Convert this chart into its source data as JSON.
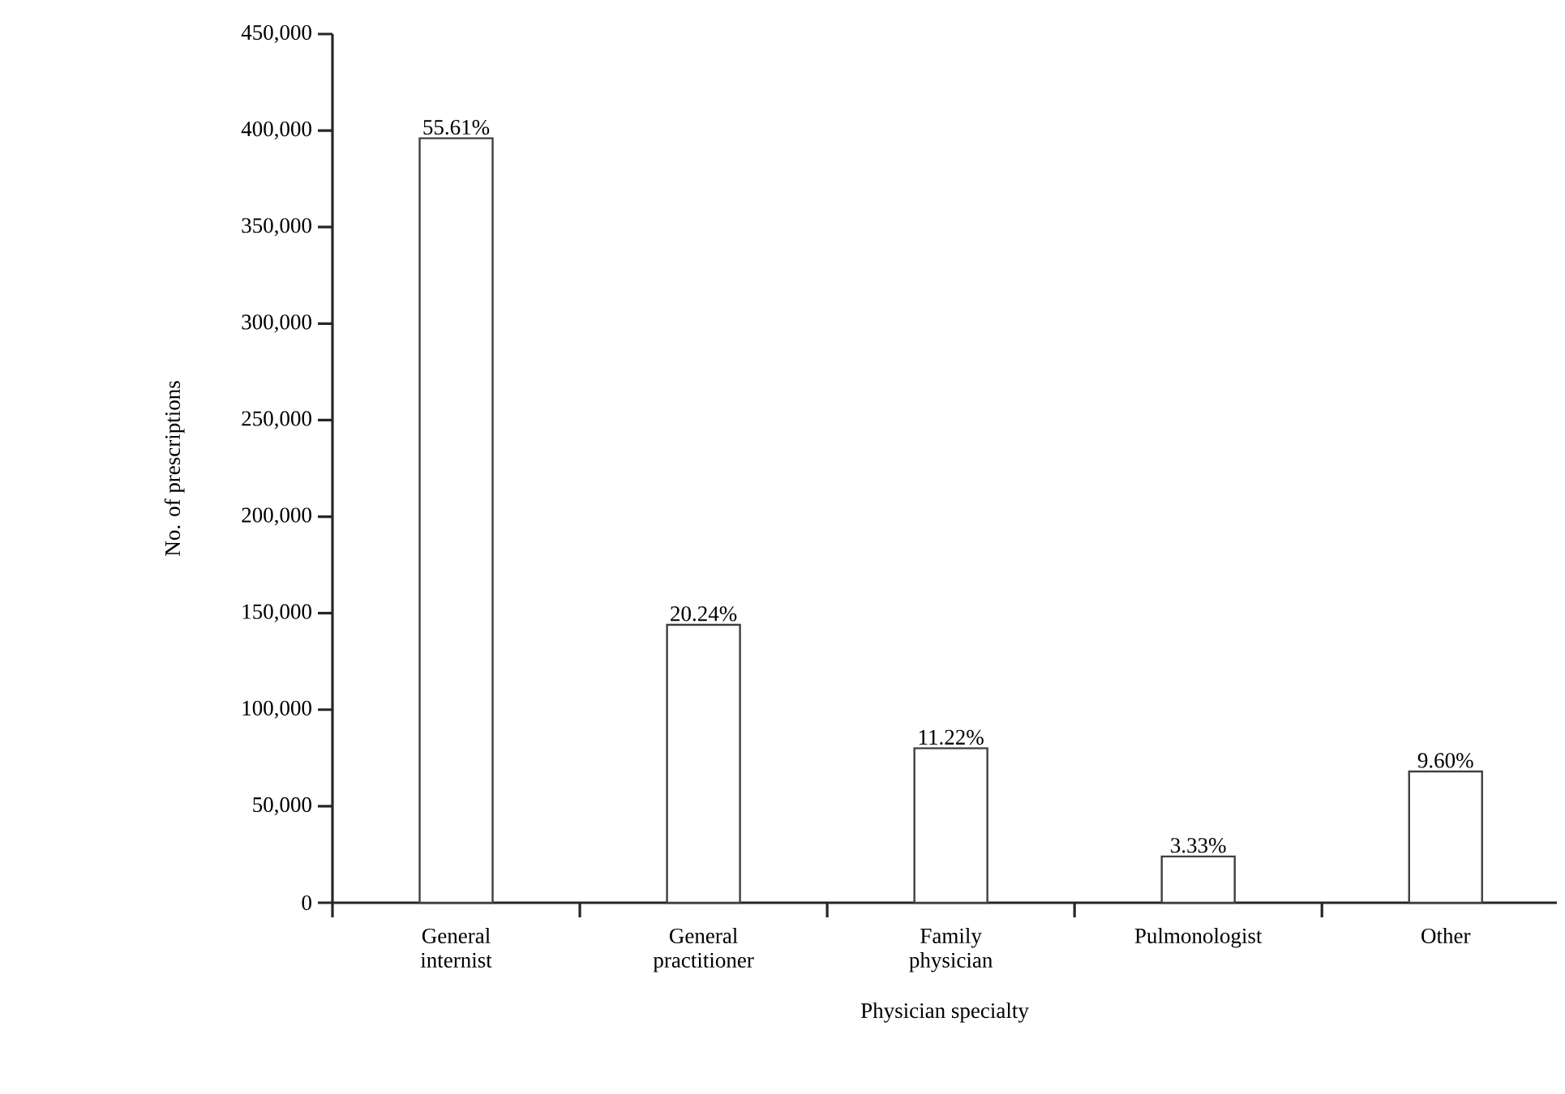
{
  "chart_data": {
    "type": "bar",
    "xlabel": "Physician specialty",
    "ylabel": "No. of prescriptions",
    "categories": [
      "General internist",
      "General practitioner",
      "Family physician",
      "Pulmonologist",
      "Other"
    ],
    "values": [
      396000,
      144000,
      80000,
      24000,
      68000
    ],
    "annotations": [
      {
        "text": "55.61%",
        "x": "General internist",
        "y": 396000
      },
      {
        "text": "20.24%",
        "x": "General practitioner",
        "y": 144000
      },
      {
        "text": "11.22%",
        "x": "Family physician",
        "y": 80000
      },
      {
        "text": "3.33%",
        "x": "Pulmonologist",
        "y": 24000
      },
      {
        "text": "9.60%",
        "x": "Other",
        "y": 68000
      }
    ],
    "color": "#ffffff",
    "ylim": [
      0,
      450000
    ],
    "yticks": [
      {
        "value": 0,
        "label": "0"
      },
      {
        "value": 50000,
        "label": "50,000"
      },
      {
        "value": 100000,
        "label": "100,000"
      },
      {
        "value": 150000,
        "label": "150,000"
      },
      {
        "value": 200000,
        "label": "200,000"
      },
      {
        "value": 250000,
        "label": "250,000"
      },
      {
        "value": 300000,
        "label": "300,000"
      },
      {
        "value": 350000,
        "label": "350,000"
      },
      {
        "value": 400000,
        "label": "400,000"
      },
      {
        "value": 450000,
        "label": "450,000"
      }
    ],
    "grid": false
  }
}
